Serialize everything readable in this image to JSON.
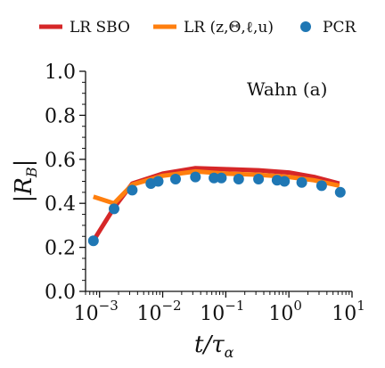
{
  "chart_data": {
    "type": "line",
    "title": "",
    "annotation": "Wahn (a)",
    "xlabel": "t/τα",
    "xlabel_main": "t/τ",
    "xlabel_sub": "α",
    "ylabel": "|R_B|",
    "ylabel_main": "|R",
    "ylabel_sub": "B",
    "ylabel_close": "|",
    "xscale": "log",
    "xlim": [
      0.0006,
      10
    ],
    "ylim": [
      0.0,
      1.0
    ],
    "x_ticks": [
      {
        "value": 0.001,
        "base": "10",
        "exp": "−3"
      },
      {
        "value": 0.01,
        "base": "10",
        "exp": "−2"
      },
      {
        "value": 0.1,
        "base": "10",
        "exp": "−1"
      },
      {
        "value": 1,
        "base": "10",
        "exp": "0"
      },
      {
        "value": 10,
        "base": "10",
        "exp": "1"
      }
    ],
    "y_ticks": [
      {
        "value": 0.0,
        "label": "0.0"
      },
      {
        "value": 0.2,
        "label": "0.2"
      },
      {
        "value": 0.4,
        "label": "0.4"
      },
      {
        "value": 0.6,
        "label": "0.6"
      },
      {
        "value": 0.8,
        "label": "0.8"
      },
      {
        "value": 1.0,
        "label": "1.0"
      }
    ],
    "legend_position": "top",
    "series": [
      {
        "name": "LR SBO",
        "kind": "line",
        "color": "#d62728",
        "points": [
          [
            0.0008,
            0.23
          ],
          [
            0.0017,
            0.38
          ],
          [
            0.0033,
            0.49
          ],
          [
            0.01,
            0.535
          ],
          [
            0.033,
            0.56
          ],
          [
            0.1,
            0.555
          ],
          [
            0.33,
            0.55
          ],
          [
            1.0,
            0.54
          ],
          [
            2.5,
            0.52
          ],
          [
            6.3,
            0.49
          ]
        ]
      },
      {
        "name": "LR (z,Θ,ℓ,u)",
        "kind": "line",
        "color": "#ff7f0e",
        "points": [
          [
            0.0008,
            0.43
          ],
          [
            0.0017,
            0.4
          ],
          [
            0.0033,
            0.485
          ],
          [
            0.01,
            0.525
          ],
          [
            0.033,
            0.545
          ],
          [
            0.1,
            0.535
          ],
          [
            0.33,
            0.53
          ],
          [
            1.0,
            0.52
          ],
          [
            2.5,
            0.505
          ],
          [
            6.3,
            0.48
          ]
        ]
      },
      {
        "name": "PCR",
        "kind": "scatter",
        "color": "#1f77b4",
        "points": [
          [
            0.0008,
            0.23
          ],
          [
            0.0017,
            0.375
          ],
          [
            0.0033,
            0.46
          ],
          [
            0.0065,
            0.49
          ],
          [
            0.0085,
            0.5
          ],
          [
            0.016,
            0.51
          ],
          [
            0.033,
            0.52
          ],
          [
            0.065,
            0.515
          ],
          [
            0.085,
            0.515
          ],
          [
            0.16,
            0.51
          ],
          [
            0.33,
            0.51
          ],
          [
            0.65,
            0.505
          ],
          [
            0.85,
            0.5
          ],
          [
            1.6,
            0.495
          ],
          [
            3.3,
            0.48
          ],
          [
            6.5,
            0.45
          ]
        ]
      }
    ]
  }
}
